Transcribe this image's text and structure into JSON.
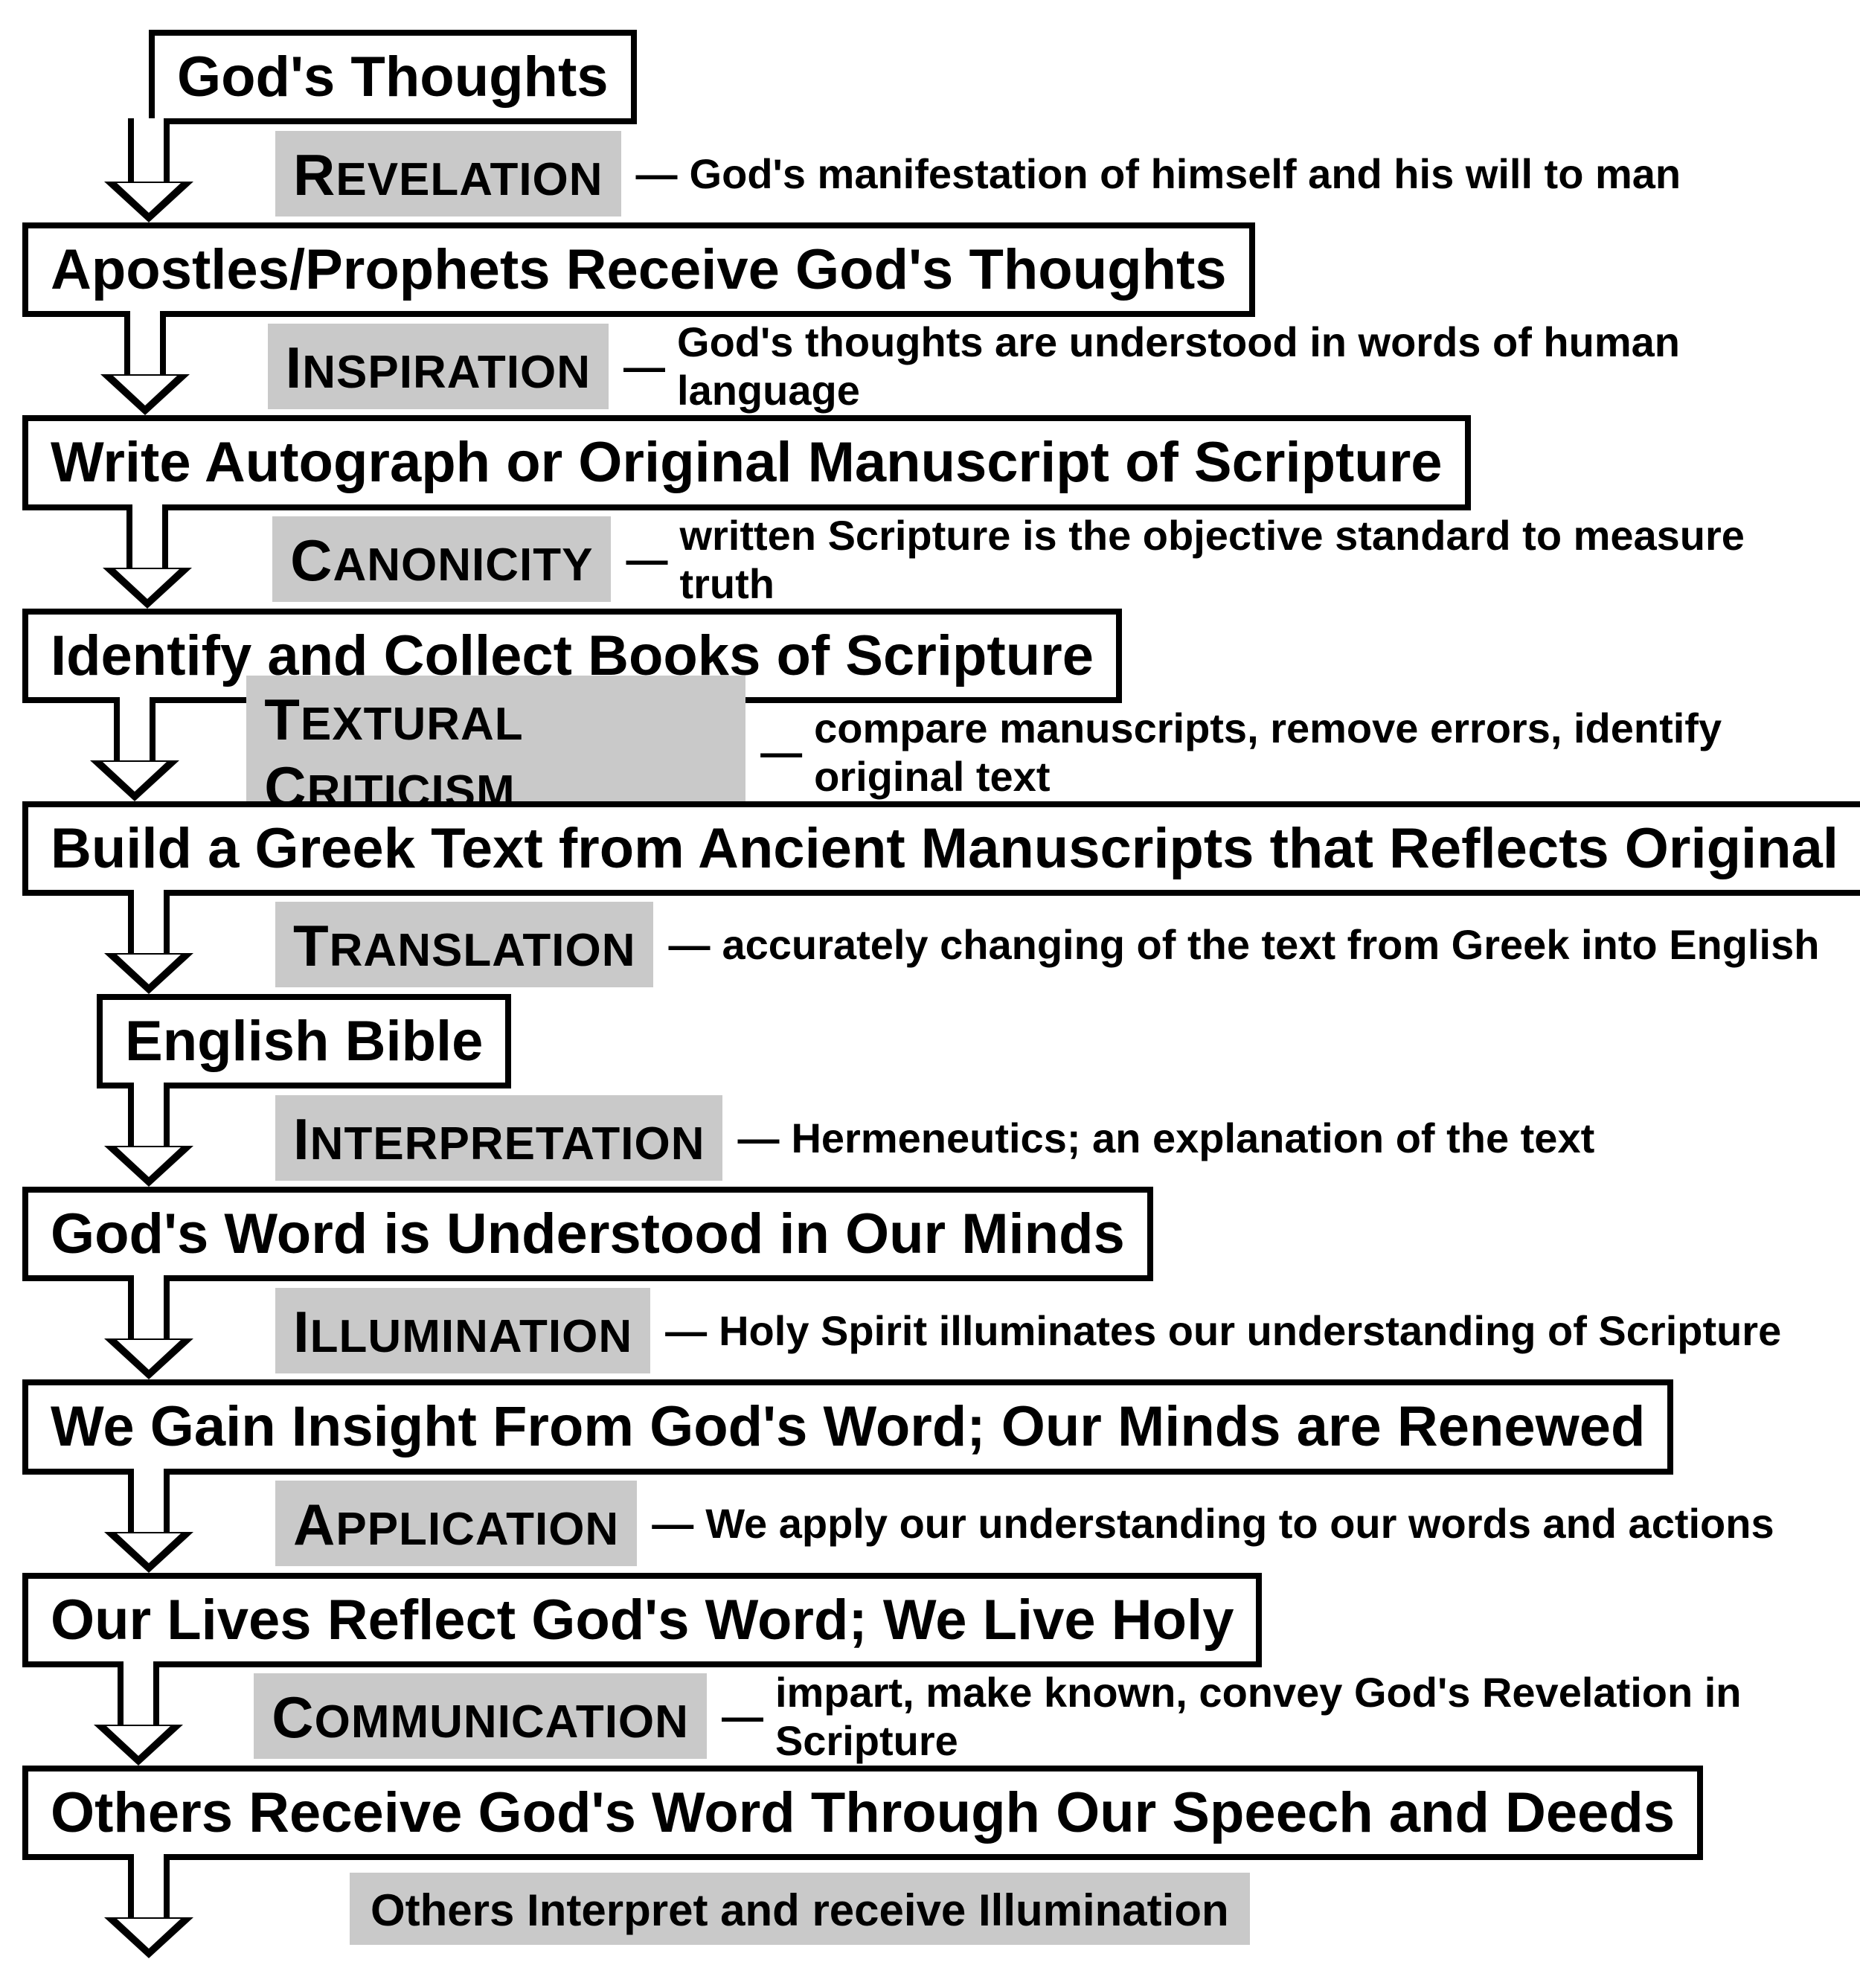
{
  "flowchart": {
    "type": "flowchart",
    "background_color": "#ffffff",
    "box_border_color": "#000000",
    "box_border_width": 8,
    "term_background_color": "#c9c9c9",
    "stage_font_size": 76,
    "term_font_size": 62,
    "term_cap_font_size": 78,
    "desc_font_size": 56,
    "arrow_width": 90,
    "steps": [
      {
        "stage": "God's Thoughts",
        "indent": 1,
        "term": "Revelation",
        "desc": "God's manifestation of himself and his will to man"
      },
      {
        "stage": "Apostles/Prophets Receive God's Thoughts",
        "indent": 0,
        "term": "Inspiration",
        "desc": "God's thoughts are understood in words of human language"
      },
      {
        "stage": "Write Autograph or Original Manuscript of Scripture",
        "indent": 0,
        "term": "Canonicity",
        "desc": "written Scripture is the objective standard to measure truth"
      },
      {
        "stage": "Identify and Collect Books of Scripture",
        "indent": 0,
        "term": "Textural Criticism",
        "desc": "compare manuscripts, remove errors,  identify original text"
      },
      {
        "stage": "Build a Greek Text from Ancient Manuscripts that Reflects Original",
        "indent": 0,
        "term": "Translation",
        "desc": "accurately changing of the text from Greek into English"
      },
      {
        "stage": "English Bible",
        "indent": 2,
        "term": "Interpretation",
        "desc": "Hermeneutics; an explanation of the text"
      },
      {
        "stage": "God's Word is Understood in Our Minds",
        "indent": 0,
        "term": "Illumination",
        "desc": "Holy Spirit illuminates our understanding of Scripture"
      },
      {
        "stage": "We Gain Insight From God's Word; Our Minds are Renewed",
        "indent": 0,
        "term": "Application",
        "desc": "We apply our understanding to our words and actions"
      },
      {
        "stage": "Our Lives Reflect God's Word; We Live Holy",
        "indent": 0,
        "term": "Communication",
        "desc": "impart, make known, convey God's Revelation in Scripture"
      },
      {
        "stage": "Others Receive God's Word Through Our Speech and Deeds",
        "indent": 0,
        "term": null,
        "final": "Others Interpret and receive Illumination"
      }
    ]
  }
}
